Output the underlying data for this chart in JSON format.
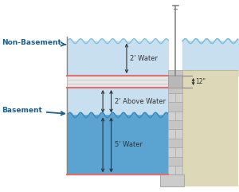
{
  "bg_color": "#ffffff",
  "water_light_color": "#c8dff0",
  "water_dark_color": "#5bagd0",
  "water_dark_hex": "#5ba3d0",
  "water_wave_nb": "#7bbedd",
  "water_wave_bsmt": "#3a85b8",
  "floor_color": "#e8e8e8",
  "floor_outline_color": "#bbbbbb",
  "floor_pink_line": "#e07070",
  "foundation_color": "#cccccc",
  "foundation_dark": "#aaaaaa",
  "foundation_outline": "#999999",
  "ground_color": "#ddd8b8",
  "ground_light": "#eeeedd",
  "rod_color": "#888888",
  "arrow_color": "#1a5f8a",
  "dim_line_color": "#333333",
  "label_color": "#1a5f8a",
  "non_basement_label": "Non-Basement",
  "basement_label": "Basement",
  "water_2ft_label": "2' Water",
  "above_water_label": "2' Above Water",
  "water_5ft_label": "5' Water",
  "dim_12_label": "12\"",
  "figsize": [
    3.0,
    2.41
  ],
  "dpi": 100
}
